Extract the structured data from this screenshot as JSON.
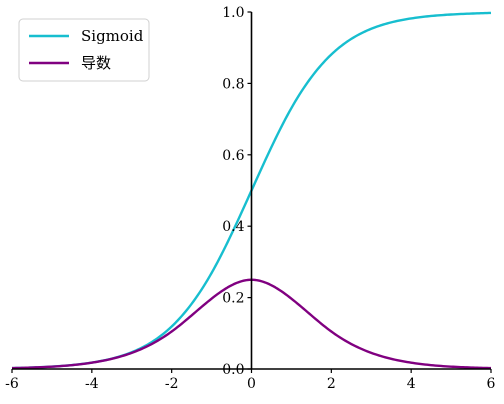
{
  "chart_data": {
    "type": "line",
    "x_range": [
      -6,
      6
    ],
    "y_range": [
      0,
      1
    ],
    "x_ticks": [
      -6,
      -4,
      -2,
      0,
      2,
      4,
      6
    ],
    "x_tick_labels": [
      "-6",
      "-4",
      "-2",
      "0",
      "2",
      "4",
      "6"
    ],
    "y_ticks": [
      0,
      0.2,
      0.4,
      0.6,
      0.8,
      1.0
    ],
    "y_tick_labels": [
      "0.0",
      "0.2",
      "0.4",
      "0.6",
      "0.8",
      "1.0"
    ],
    "grid": false,
    "legend_position": "top-left",
    "x": [
      -6,
      -5,
      -4,
      -3,
      -2,
      -1,
      0,
      1,
      2,
      3,
      4,
      5,
      6
    ],
    "series": [
      {
        "name": "Sigmoid",
        "color": "#17becf",
        "values": [
          0.0025,
          0.0067,
          0.018,
          0.047,
          0.119,
          0.269,
          0.5,
          0.731,
          0.881,
          0.953,
          0.982,
          0.993,
          0.9975
        ]
      },
      {
        "name": "导数",
        "color": "#800080",
        "values": [
          0.0025,
          0.0066,
          0.0177,
          0.0452,
          0.105,
          0.197,
          0.25,
          0.197,
          0.105,
          0.0452,
          0.0177,
          0.0066,
          0.0025
        ]
      }
    ]
  }
}
